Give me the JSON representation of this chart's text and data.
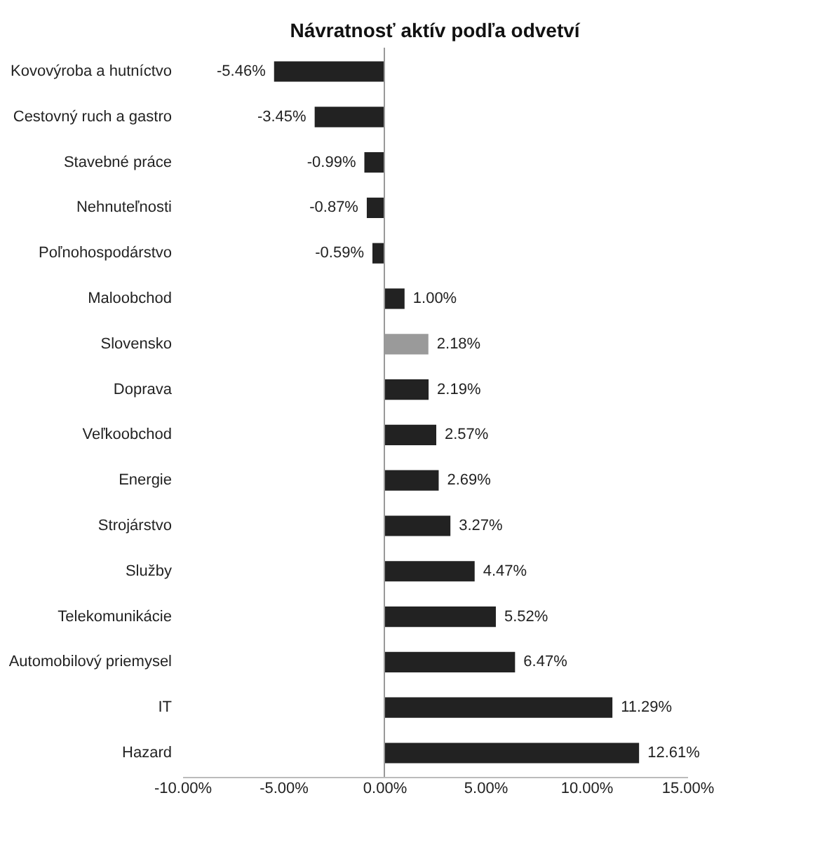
{
  "chart_data": {
    "type": "bar",
    "title": "Návratnosť aktív podľa odvetví",
    "orientation": "horizontal",
    "categories": [
      "Kovovýroba a hutníctvo",
      "Cestovný ruch a gastro",
      "Stavebné práce",
      "Nehnuteľnosti",
      "Poľnohospodárstvo",
      "Maloobchod",
      "Slovensko",
      "Doprava",
      "Veľkoobchod",
      "Energie",
      "Strojárstvo",
      "Služby",
      "Telekomunikácie",
      "Automobilový priemysel",
      "IT",
      "Hazard"
    ],
    "values": [
      -5.46,
      -3.45,
      -0.99,
      -0.87,
      -0.59,
      1.0,
      2.18,
      2.19,
      2.57,
      2.69,
      3.27,
      4.47,
      5.52,
      6.47,
      11.29,
      12.61
    ],
    "value_labels": [
      "-5.46%",
      "-3.45%",
      "-0.99%",
      "-0.87%",
      "-0.59%",
      "1.00%",
      "2.18%",
      "2.19%",
      "2.57%",
      "2.69%",
      "3.27%",
      "4.47%",
      "5.52%",
      "6.47%",
      "11.29%",
      "12.61%"
    ],
    "colors": [
      "#222222",
      "#222222",
      "#222222",
      "#222222",
      "#222222",
      "#222222",
      "#9a9a9a",
      "#222222",
      "#222222",
      "#222222",
      "#222222",
      "#222222",
      "#222222",
      "#222222",
      "#222222",
      "#222222"
    ],
    "xlim": [
      -10,
      15
    ],
    "xticks": [
      {
        "value": -10,
        "label": "-10.00%"
      },
      {
        "value": -5,
        "label": "-5.00%"
      },
      {
        "value": 0,
        "label": "0.00%"
      },
      {
        "value": 5,
        "label": "5.00%"
      },
      {
        "value": 10,
        "label": "10.00%"
      },
      {
        "value": 15,
        "label": "15.00%"
      }
    ],
    "ref_lines": [
      {
        "axis": "x",
        "value": 0,
        "color": "#999999"
      }
    ],
    "grid": false
  }
}
